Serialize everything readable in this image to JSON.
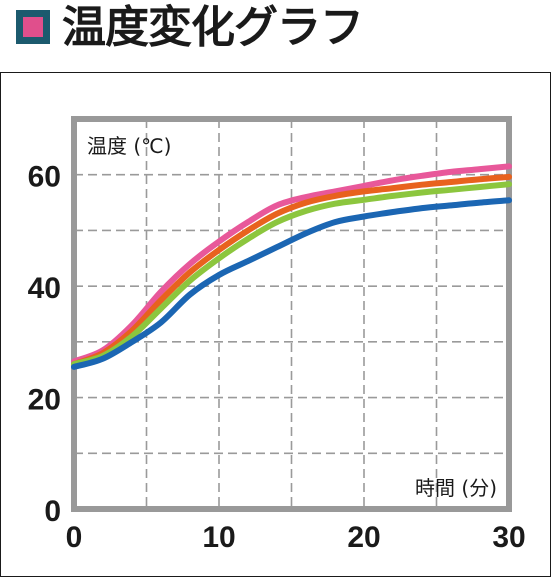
{
  "title": "温度変化グラフ",
  "colors": {
    "marker_outer": "#1c5a6e",
    "marker_inner": "#e04f8c",
    "grid": "#9a9a9a",
    "frame": "#999999"
  },
  "chart_data": {
    "type": "line",
    "title": "温度変化グラフ",
    "xlabel": "時間 (分)",
    "ylabel": "温度 (℃)",
    "xlim": [
      0,
      30
    ],
    "ylim": [
      0,
      70
    ],
    "x_ticks": [
      0,
      10,
      20,
      30
    ],
    "y_ticks": [
      0,
      20,
      40,
      60
    ],
    "grid": true,
    "legend": "none",
    "x": [
      0,
      2,
      4,
      6,
      8,
      10,
      12,
      14,
      16,
      18,
      20,
      22,
      24,
      26,
      28,
      30
    ],
    "series": [
      {
        "color": "#e8589a",
        "values": [
          26.5,
          28.5,
          33,
          39,
          44,
          48,
          51.5,
          54.5,
          56,
          57,
          58,
          59,
          59.8,
          60.5,
          61,
          61.5
        ]
      },
      {
        "color": "#e8621e",
        "values": [
          26,
          28,
          32,
          37.5,
          42.5,
          46.5,
          50,
          53,
          55,
          56.2,
          57,
          57.6,
          58.2,
          58.7,
          59.2,
          59.6
        ]
      },
      {
        "color": "#8cc63e",
        "values": [
          26,
          27.5,
          31,
          36,
          41,
          45,
          48.5,
          51.5,
          53.5,
          54.8,
          55.5,
          56.2,
          56.8,
          57.3,
          57.8,
          58.3
        ]
      },
      {
        "color": "#1b66b3",
        "values": [
          25.5,
          27,
          30,
          33.5,
          38.5,
          42,
          44.5,
          47,
          49.5,
          51.5,
          52.5,
          53.3,
          54,
          54.5,
          55,
          55.4
        ]
      }
    ]
  }
}
